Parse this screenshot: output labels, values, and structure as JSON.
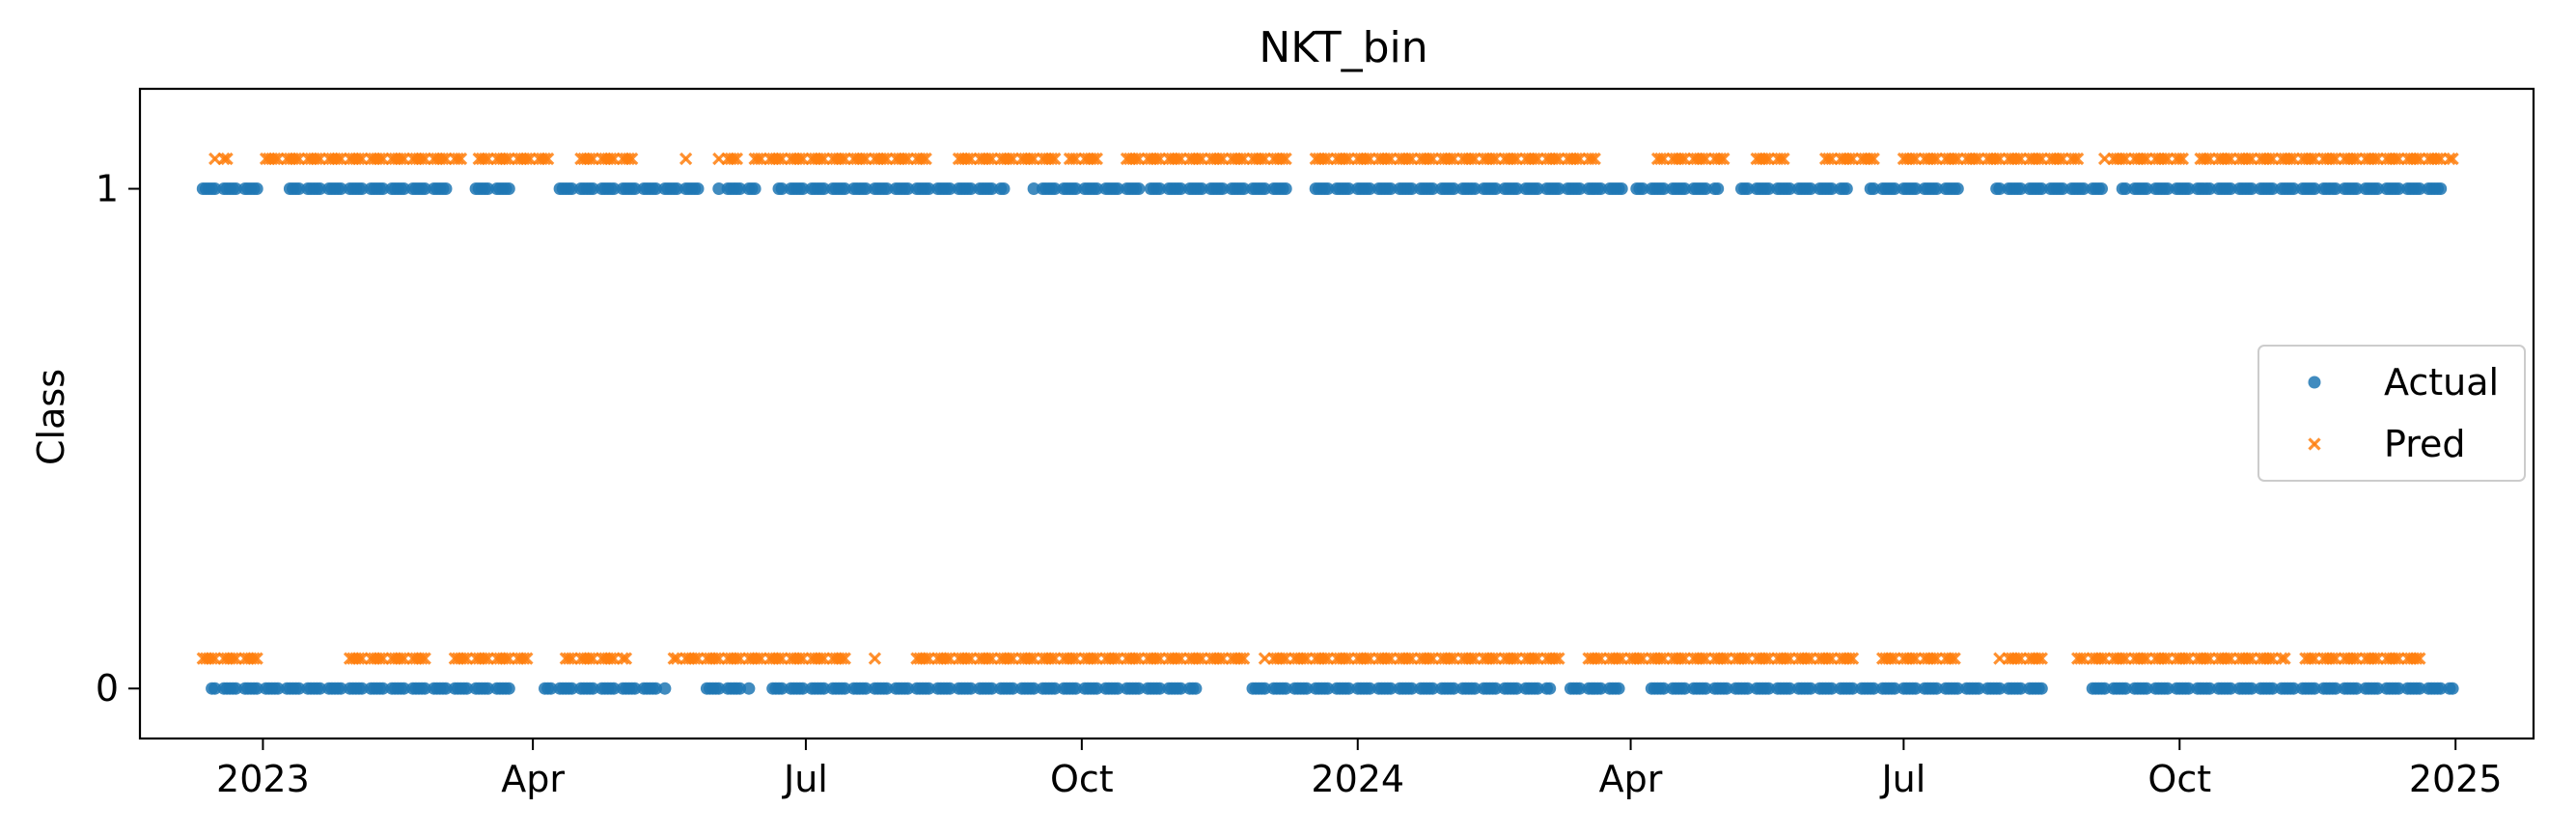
{
  "chart_data": {
    "type": "scatter",
    "title": "NKT_bin",
    "xlabel": "",
    "ylabel": "Class",
    "x_axis_type": "date",
    "xlim": [
      "2022-11-21",
      "2025-01-27"
    ],
    "ylim": [
      -0.1,
      1.2
    ],
    "x_ticks": [
      {
        "date": "2023-01-01",
        "label": "2023"
      },
      {
        "date": "2023-04-01",
        "label": "Apr"
      },
      {
        "date": "2023-07-01",
        "label": "Jul"
      },
      {
        "date": "2023-10-01",
        "label": "Oct"
      },
      {
        "date": "2024-01-01",
        "label": "2024"
      },
      {
        "date": "2024-04-01",
        "label": "Apr"
      },
      {
        "date": "2024-07-01",
        "label": "Jul"
      },
      {
        "date": "2024-10-01",
        "label": "Oct"
      },
      {
        "date": "2025-01-01",
        "label": "2025"
      }
    ],
    "y_ticks": [
      {
        "value": 0,
        "label": "0"
      },
      {
        "value": 1,
        "label": "1"
      }
    ],
    "grid": false,
    "legend": {
      "placement": "center-right"
    },
    "series": [
      {
        "name": "Actual",
        "marker": "circle",
        "color": "#1f77b4",
        "y_offset": 0,
        "points": [
          {
            "start": "2022-12-12",
            "end": "2022-12-31",
            "y": 1
          },
          {
            "start": "2023-01-10",
            "end": "2023-03-05",
            "y": 1
          },
          {
            "start": "2023-03-12",
            "end": "2023-03-25",
            "y": 1
          },
          {
            "start": "2023-04-10",
            "end": "2023-05-26",
            "y": 1
          },
          {
            "start": "2023-06-02",
            "end": "2023-06-14",
            "y": 1
          },
          {
            "start": "2023-06-22",
            "end": "2023-09-05",
            "y": 1
          },
          {
            "start": "2023-09-15",
            "end": "2023-10-20",
            "y": 1
          },
          {
            "start": "2023-10-24",
            "end": "2023-12-08",
            "y": 1
          },
          {
            "start": "2023-12-18",
            "end": "2024-03-31",
            "y": 1
          },
          {
            "start": "2024-04-03",
            "end": "2024-04-30",
            "y": 1
          },
          {
            "start": "2024-05-08",
            "end": "2024-06-12",
            "y": 1
          },
          {
            "start": "2024-06-20",
            "end": "2024-07-20",
            "y": 1
          },
          {
            "start": "2024-08-01",
            "end": "2024-09-05",
            "y": 1
          },
          {
            "start": "2024-09-12",
            "end": "2024-12-28",
            "y": 1
          },
          {
            "start": "2022-12-15",
            "end": "2023-03-25",
            "y": 0
          },
          {
            "start": "2023-04-05",
            "end": "2023-05-15",
            "y": 0
          },
          {
            "start": "2023-05-28",
            "end": "2023-06-12",
            "y": 0
          },
          {
            "start": "2023-06-20",
            "end": "2023-11-08",
            "y": 0
          },
          {
            "start": "2023-11-25",
            "end": "2024-03-05",
            "y": 0
          },
          {
            "start": "2024-03-12",
            "end": "2024-03-28",
            "y": 0
          },
          {
            "start": "2024-04-08",
            "end": "2024-08-18",
            "y": 0
          },
          {
            "start": "2024-09-01",
            "end": "2024-12-31",
            "y": 0
          }
        ]
      },
      {
        "name": "Pred",
        "marker": "x",
        "color": "#ff7f0e",
        "y_offset": 0.06,
        "points": [
          {
            "start": "2022-12-16",
            "end": "2022-12-20",
            "y": 1
          },
          {
            "start": "2023-01-01",
            "end": "2023-03-08",
            "y": 1
          },
          {
            "start": "2023-03-14",
            "end": "2023-04-06",
            "y": 1
          },
          {
            "start": "2023-04-15",
            "end": "2023-05-04",
            "y": 1
          },
          {
            "start": "2023-05-20",
            "end": "2023-05-22",
            "y": 1
          },
          {
            "start": "2023-06-02",
            "end": "2023-06-08",
            "y": 1
          },
          {
            "start": "2023-06-14",
            "end": "2023-08-10",
            "y": 1
          },
          {
            "start": "2023-08-20",
            "end": "2023-09-22",
            "y": 1
          },
          {
            "start": "2023-09-27",
            "end": "2023-10-08",
            "y": 1
          },
          {
            "start": "2023-10-14",
            "end": "2023-12-10",
            "y": 1
          },
          {
            "start": "2023-12-16",
            "end": "2024-03-20",
            "y": 1
          },
          {
            "start": "2024-04-10",
            "end": "2024-05-02",
            "y": 1
          },
          {
            "start": "2024-05-12",
            "end": "2024-05-22",
            "y": 1
          },
          {
            "start": "2024-06-05",
            "end": "2024-06-22",
            "y": 1
          },
          {
            "start": "2024-07-01",
            "end": "2024-08-28",
            "y": 1
          },
          {
            "start": "2024-09-06",
            "end": "2024-10-02",
            "y": 1
          },
          {
            "start": "2024-10-08",
            "end": "2024-12-31",
            "y": 1
          },
          {
            "start": "2022-12-12",
            "end": "2022-12-30",
            "y": 0
          },
          {
            "start": "2023-01-28",
            "end": "2023-02-25",
            "y": 0
          },
          {
            "start": "2023-03-05",
            "end": "2023-03-30",
            "y": 0
          },
          {
            "start": "2023-04-12",
            "end": "2023-05-02",
            "y": 0
          },
          {
            "start": "2023-05-18",
            "end": "2023-07-15",
            "y": 0
          },
          {
            "start": "2023-07-22",
            "end": "2023-07-24",
            "y": 0
          },
          {
            "start": "2023-08-05",
            "end": "2023-11-25",
            "y": 0
          },
          {
            "start": "2023-12-01",
            "end": "2024-03-08",
            "y": 0
          },
          {
            "start": "2024-03-16",
            "end": "2024-06-15",
            "y": 0
          },
          {
            "start": "2024-06-22",
            "end": "2024-07-18",
            "y": 0
          },
          {
            "start": "2024-08-02",
            "end": "2024-08-18",
            "y": 0
          },
          {
            "start": "2024-08-28",
            "end": "2024-11-05",
            "y": 0
          },
          {
            "start": "2024-11-12",
            "end": "2024-12-20",
            "y": 0
          }
        ]
      }
    ]
  }
}
